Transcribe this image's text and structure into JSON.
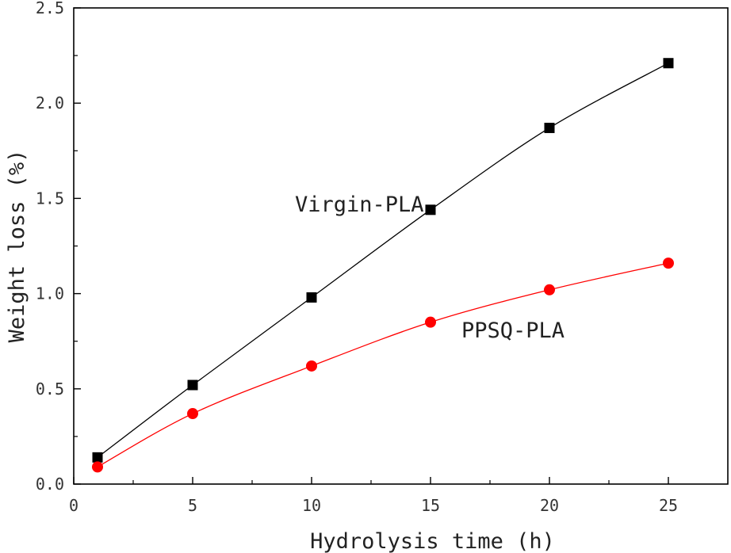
{
  "chart_data": {
    "type": "line",
    "xlabel": "Hydrolysis time (h)",
    "ylabel": "Weight loss (%)",
    "xlim": [
      0,
      27.5
    ],
    "ylim": [
      0,
      2.5
    ],
    "x_ticks": [
      0,
      5,
      10,
      15,
      20,
      25
    ],
    "x_tick_labels": [
      "0",
      "5",
      "10",
      "15",
      "20",
      "25"
    ],
    "y_ticks": [
      0,
      0.5,
      1.0,
      1.5,
      2.0,
      2.5
    ],
    "y_tick_labels": [
      "0.0",
      "0.5",
      "1.0",
      "1.5",
      "2.0",
      "2.5"
    ],
    "grid": false,
    "legend": "none",
    "series": [
      {
        "name": "Virgin-PLA",
        "marker": "square",
        "color": "#000000",
        "x": [
          1,
          5,
          10,
          15,
          20,
          25
        ],
        "y": [
          0.14,
          0.52,
          0.98,
          1.44,
          1.87,
          2.21
        ]
      },
      {
        "name": "PPSQ-PLA",
        "marker": "circle",
        "color": "#ff0000",
        "x": [
          1,
          5,
          10,
          15,
          20,
          25
        ],
        "y": [
          0.09,
          0.37,
          0.62,
          0.85,
          1.02,
          1.16
        ]
      }
    ],
    "annotations": [
      {
        "text": "Virgin-PLA",
        "x": 9.3,
        "y": 1.43
      },
      {
        "text": "PPSQ-PLA",
        "x": 16.3,
        "y": 0.77
      }
    ]
  }
}
